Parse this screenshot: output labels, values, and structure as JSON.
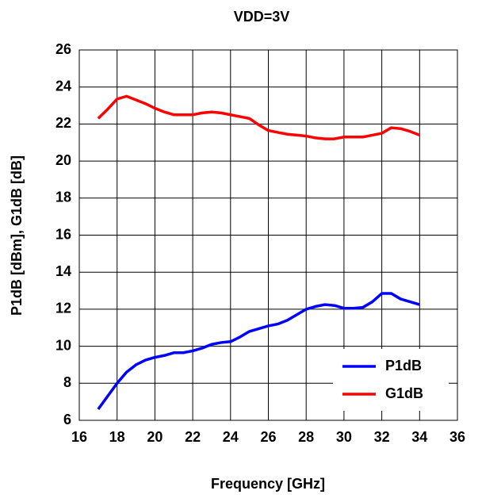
{
  "chart_data": {
    "type": "line",
    "title": "VDD=3V",
    "xlabel": "Frequency [GHz]",
    "ylabel": "P1dB [dBm], G1dB [dB]",
    "x": [
      17,
      17.5,
      18,
      18.5,
      19,
      19.5,
      20,
      20.5,
      21,
      21.5,
      22,
      22.5,
      23,
      23.5,
      24,
      24.5,
      25,
      25.5,
      26,
      26.5,
      27,
      27.5,
      28,
      28.5,
      29,
      29.5,
      30,
      30.5,
      31,
      31.5,
      32,
      32.5,
      33,
      33.5,
      34
    ],
    "series": [
      {
        "name": "P1dB",
        "color": "#0000ff",
        "values": [
          6.6,
          7.3,
          8.0,
          8.6,
          9.0,
          9.25,
          9.4,
          9.5,
          9.65,
          9.65,
          9.75,
          9.9,
          10.1,
          10.2,
          10.25,
          10.5,
          10.8,
          10.95,
          11.1,
          11.2,
          11.4,
          11.7,
          12.0,
          12.15,
          12.25,
          12.2,
          12.05,
          12.05,
          12.1,
          12.4,
          12.85,
          12.85,
          12.55,
          12.4,
          12.25
        ]
      },
      {
        "name": "G1dB",
        "color": "#ff0000",
        "values": [
          22.3,
          22.8,
          23.35,
          23.5,
          23.3,
          23.1,
          22.85,
          22.65,
          22.5,
          22.5,
          22.5,
          22.6,
          22.65,
          22.6,
          22.5,
          22.4,
          22.3,
          21.95,
          21.65,
          21.55,
          21.45,
          21.4,
          21.35,
          21.25,
          21.2,
          21.2,
          21.3,
          21.3,
          21.3,
          21.4,
          21.5,
          21.8,
          21.75,
          21.6,
          21.4
        ]
      }
    ],
    "xlim": [
      16,
      36
    ],
    "xticks": [
      16,
      18,
      20,
      22,
      24,
      26,
      28,
      30,
      32,
      34,
      36
    ],
    "ylim": [
      6,
      26
    ],
    "yticks": [
      6,
      8,
      10,
      12,
      14,
      16,
      18,
      20,
      22,
      24,
      26
    ],
    "grid": true,
    "legend": "lower right"
  }
}
